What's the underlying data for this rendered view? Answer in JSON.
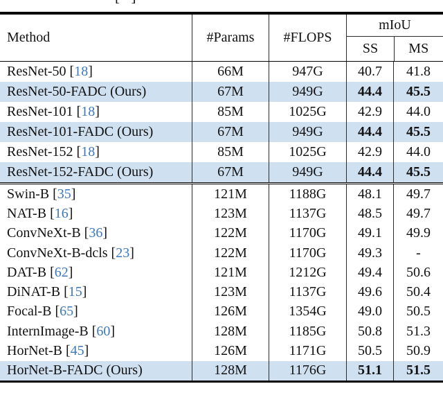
{
  "colors": {
    "highlight": "#cfe0f1",
    "citation": "#3b78bc",
    "rule": "#000000"
  },
  "refs": {
    "open": "[",
    "close": "]"
  },
  "caption_fragment": "[  ]",
  "table": {
    "header": {
      "method": "Method",
      "params": "#Params",
      "flops": "#FLOPS",
      "miou": "mIoU",
      "ss": "SS",
      "ms": "MS"
    },
    "section1": [
      {
        "method": "ResNet-50",
        "cite": "18",
        "suffix": "",
        "params": "66M",
        "flops": "947G",
        "ss": "40.7",
        "ms": "41.8",
        "highlight": false,
        "bold": false
      },
      {
        "method": "ResNet-50-FADC",
        "cite": "",
        "suffix": "(Ours)",
        "params": "67M",
        "flops": "949G",
        "ss": "44.4",
        "ms": "45.5",
        "highlight": true,
        "bold": true
      },
      {
        "method": "ResNet-101",
        "cite": "18",
        "suffix": "",
        "params": "85M",
        "flops": "1025G",
        "ss": "42.9",
        "ms": "44.0",
        "highlight": false,
        "bold": false
      },
      {
        "method": "ResNet-101-FADC",
        "cite": "",
        "suffix": "(Ours)",
        "params": "67M",
        "flops": "949G",
        "ss": "44.4",
        "ms": "45.5",
        "highlight": true,
        "bold": true
      },
      {
        "method": "ResNet-152",
        "cite": "18",
        "suffix": "",
        "params": "85M",
        "flops": "1025G",
        "ss": "42.9",
        "ms": "44.0",
        "highlight": false,
        "bold": false
      },
      {
        "method": "ResNet-152-FADC",
        "cite": "",
        "suffix": "(Ours)",
        "params": "67M",
        "flops": "949G",
        "ss": "44.4",
        "ms": "45.5",
        "highlight": true,
        "bold": true
      }
    ],
    "section2": [
      {
        "method": "Swin-B",
        "cite": "35",
        "suffix": "",
        "params": "121M",
        "flops": "1188G",
        "ss": "48.1",
        "ms": "49.7",
        "highlight": false,
        "bold": false
      },
      {
        "method": "NAT-B",
        "cite": "16",
        "suffix": "",
        "params": "123M",
        "flops": "1137G",
        "ss": "48.5",
        "ms": "49.7",
        "highlight": false,
        "bold": false
      },
      {
        "method": "ConvNeXt-B",
        "cite": "36",
        "suffix": "",
        "params": "122M",
        "flops": "1170G",
        "ss": "49.1",
        "ms": "49.9",
        "highlight": false,
        "bold": false
      },
      {
        "method": "ConvNeXt-B-dcls",
        "cite": "23",
        "suffix": "",
        "params": "122M",
        "flops": "1170G",
        "ss": "49.3",
        "ms": "-",
        "highlight": false,
        "bold": false
      },
      {
        "method": "DAT-B",
        "cite": "62",
        "suffix": "",
        "params": "121M",
        "flops": "1212G",
        "ss": "49.4",
        "ms": "50.6",
        "highlight": false,
        "bold": false
      },
      {
        "method": "DiNAT-B",
        "cite": "15",
        "suffix": "",
        "params": "123M",
        "flops": "1137G",
        "ss": "49.6",
        "ms": "50.4",
        "highlight": false,
        "bold": false
      },
      {
        "method": "Focal-B",
        "cite": "65",
        "suffix": "",
        "params": "126M",
        "flops": "1354G",
        "ss": "49.0",
        "ms": "50.5",
        "highlight": false,
        "bold": false
      },
      {
        "method": "InternImage-B",
        "cite": "60",
        "suffix": "",
        "params": "128M",
        "flops": "1185G",
        "ss": "50.8",
        "ms": "51.3",
        "highlight": false,
        "bold": false
      },
      {
        "method": "HorNet-B",
        "cite": "45",
        "suffix": "",
        "params": "126M",
        "flops": "1171G",
        "ss": "50.5",
        "ms": "50.9",
        "highlight": false,
        "bold": false
      },
      {
        "method": "HorNet-B-FADC",
        "cite": "",
        "suffix": "(Ours)",
        "params": "128M",
        "flops": "1176G",
        "ss": "51.1",
        "ms": "51.5",
        "highlight": true,
        "bold": true
      }
    ]
  }
}
